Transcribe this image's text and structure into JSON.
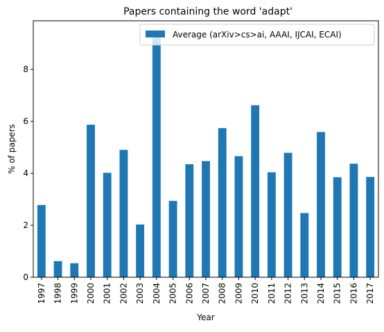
{
  "chart_data": {
    "type": "bar",
    "title": "Papers containing the word 'adapt'",
    "xlabel": "Year",
    "ylabel": "% of papers",
    "categories": [
      "1997",
      "1998",
      "1999",
      "2000",
      "2001",
      "2002",
      "2003",
      "2004",
      "2005",
      "2006",
      "2007",
      "2008",
      "2009",
      "2010",
      "2011",
      "2012",
      "2013",
      "2014",
      "2015",
      "2016",
      "2017"
    ],
    "series": [
      {
        "name": "Average (arXiv>cs>ai, AAAI, IJCAI, ECAI)",
        "color": "#1f77b4",
        "values": [
          2.78,
          0.62,
          0.54,
          5.87,
          4.02,
          4.9,
          2.03,
          9.4,
          2.94,
          4.35,
          4.47,
          5.74,
          4.66,
          6.62,
          4.04,
          4.79,
          2.47,
          5.59,
          3.85,
          4.37,
          3.86
        ]
      }
    ],
    "ylim": [
      0,
      9.87
    ],
    "yticks": [
      0,
      2,
      4,
      6,
      8
    ],
    "grid": false,
    "legend_position": "top-right"
  }
}
